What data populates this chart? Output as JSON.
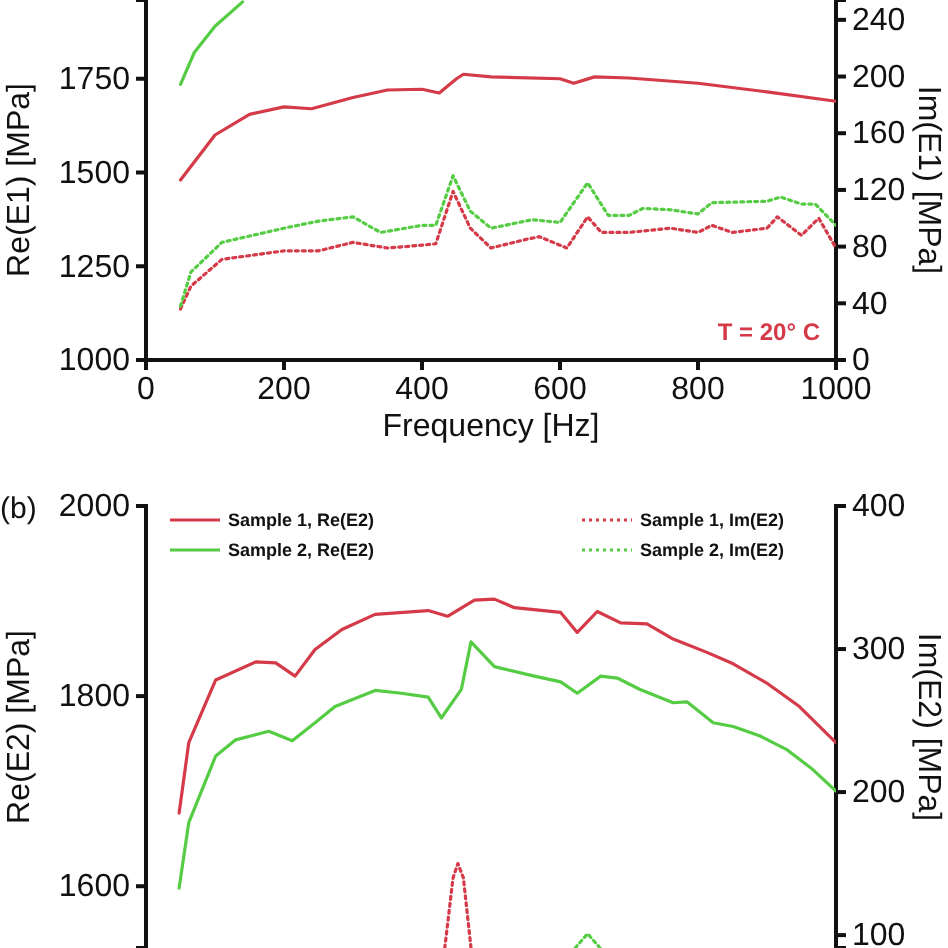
{
  "chart_data": [
    {
      "type": "line",
      "xlabel": "Frequency [Hz]",
      "ylabel": "Re(E1) [MPa]",
      "y2label": "Im(E1) [MPa]",
      "xlim": [
        0,
        1000
      ],
      "xticks": [
        0,
        200,
        400,
        600,
        800,
        1000
      ],
      "ylim": [
        1000,
        1960
      ],
      "yticks": [
        1000,
        1250,
        1500,
        1750
      ],
      "y2lim": [
        0,
        254
      ],
      "y2ticks": [
        0,
        40,
        80,
        120,
        160,
        200,
        240
      ],
      "annotations": [
        "T = 20° C"
      ],
      "legend": false,
      "grid": false,
      "series": [
        {
          "color": "#d43a48",
          "x": [
            50,
            100,
            150,
            200,
            240,
            300,
            350,
            400,
            425,
            450,
            460,
            500,
            600,
            620,
            650,
            700,
            800,
            900,
            1000
          ],
          "values": [
            1480,
            1600,
            1655,
            1675,
            1670,
            1700,
            1720,
            1722,
            1712,
            1750,
            1762,
            1755,
            1750,
            1738,
            1755,
            1752,
            1738,
            1715,
            1690
          ]
        },
        {
          "color": "#55cc44",
          "x": [
            50,
            70,
            100,
            140
          ],
          "values": [
            1735,
            1820,
            1890,
            1955
          ]
        },
        {
          "color": "#d43a48",
          "axis": "y2",
          "line_style": "dotted",
          "x": [
            50,
            65,
            110,
            200,
            250,
            300,
            350,
            400,
            420,
            445,
            470,
            500,
            550,
            570,
            600,
            610,
            640,
            660,
            700,
            760,
            800,
            820,
            850,
            900,
            915,
            950,
            975,
            1000
          ],
          "values": [
            36,
            52,
            71,
            77,
            77,
            83,
            79,
            81,
            82,
            119,
            93,
            79,
            85,
            87,
            81,
            79,
            101,
            90,
            90,
            93,
            90,
            95,
            90,
            93,
            101,
            88,
            100,
            79
          ]
        },
        {
          "color": "#55cc44",
          "axis": "y2",
          "line_style": "dotted",
          "x": [
            50,
            65,
            110,
            200,
            250,
            300,
            340,
            400,
            420,
            445,
            470,
            500,
            560,
            600,
            640,
            670,
            700,
            720,
            760,
            800,
            820,
            900,
            920,
            950,
            970,
            1000
          ],
          "values": [
            38,
            62,
            83,
            93,
            98,
            101,
            90,
            95,
            95,
            130,
            105,
            93,
            99,
            97,
            125,
            102,
            102,
            107,
            106,
            103,
            111,
            112,
            115,
            110,
            110,
            95
          ]
        }
      ]
    },
    {
      "type": "line",
      "ylabel": "Re(E2) [MPa]",
      "y2label": "Im(E2) [MPa]",
      "xlim": [
        0,
        1000
      ],
      "tick_labels": "y",
      "ylim": [
        1535,
        2000
      ],
      "yticks": [
        1600,
        1800,
        2000
      ],
      "y2lim": [
        91,
        400
      ],
      "y2ticks": [
        100,
        200,
        300,
        400
      ],
      "annotations": [
        "(b)"
      ],
      "legend": "top",
      "grid": false,
      "series": [
        {
          "name": "Sample 1, Re(E2)",
          "color": "#d43a48",
          "x": [
            48,
            62,
            101,
            159,
            188,
            216,
            245,
            284,
            332,
            409,
            437,
            476,
            505,
            534,
            601,
            625,
            654,
            688,
            726,
            764,
            813,
            851,
            899,
            947,
            1000
          ],
          "values": [
            1677,
            1751,
            1817,
            1836,
            1835,
            1821,
            1849,
            1870,
            1886,
            1890,
            1884,
            1901,
            1902,
            1893,
            1888,
            1867,
            1889,
            1877,
            1876,
            1860,
            1846,
            1834,
            1814,
            1789,
            1751
          ]
        },
        {
          "name": "Sample 2, Re(E2)",
          "color": "#55cc44",
          "x": [
            48,
            62,
            101,
            130,
            178,
            212,
            245,
            274,
            332,
            370,
            409,
            428,
            457,
            471,
            505,
            563,
            601,
            625,
            659,
            683,
            716,
            764,
            784,
            822,
            851,
            890,
            928,
            966,
            1000
          ],
          "values": [
            1598,
            1667,
            1737,
            1754,
            1763,
            1753,
            1772,
            1789,
            1806,
            1803,
            1799,
            1777,
            1807,
            1857,
            1831,
            1821,
            1815,
            1803,
            1821,
            1819,
            1807,
            1793,
            1794,
            1772,
            1768,
            1758,
            1744,
            1723,
            1700
          ]
        },
        {
          "name": "Sample 1, Im(E2)",
          "color": "#d43a48",
          "axis": "y2",
          "line_style": "dotted",
          "x": [
            433,
            445,
            452,
            460,
            471
          ],
          "values": [
            91,
            140,
            150,
            140,
            91
          ]
        },
        {
          "name": "Sample 2, Im(E2)",
          "color": "#55cc44",
          "axis": "y2",
          "line_style": "dotted",
          "x": [
            622,
            640,
            658
          ],
          "values": [
            91,
            101,
            91
          ]
        }
      ]
    }
  ]
}
